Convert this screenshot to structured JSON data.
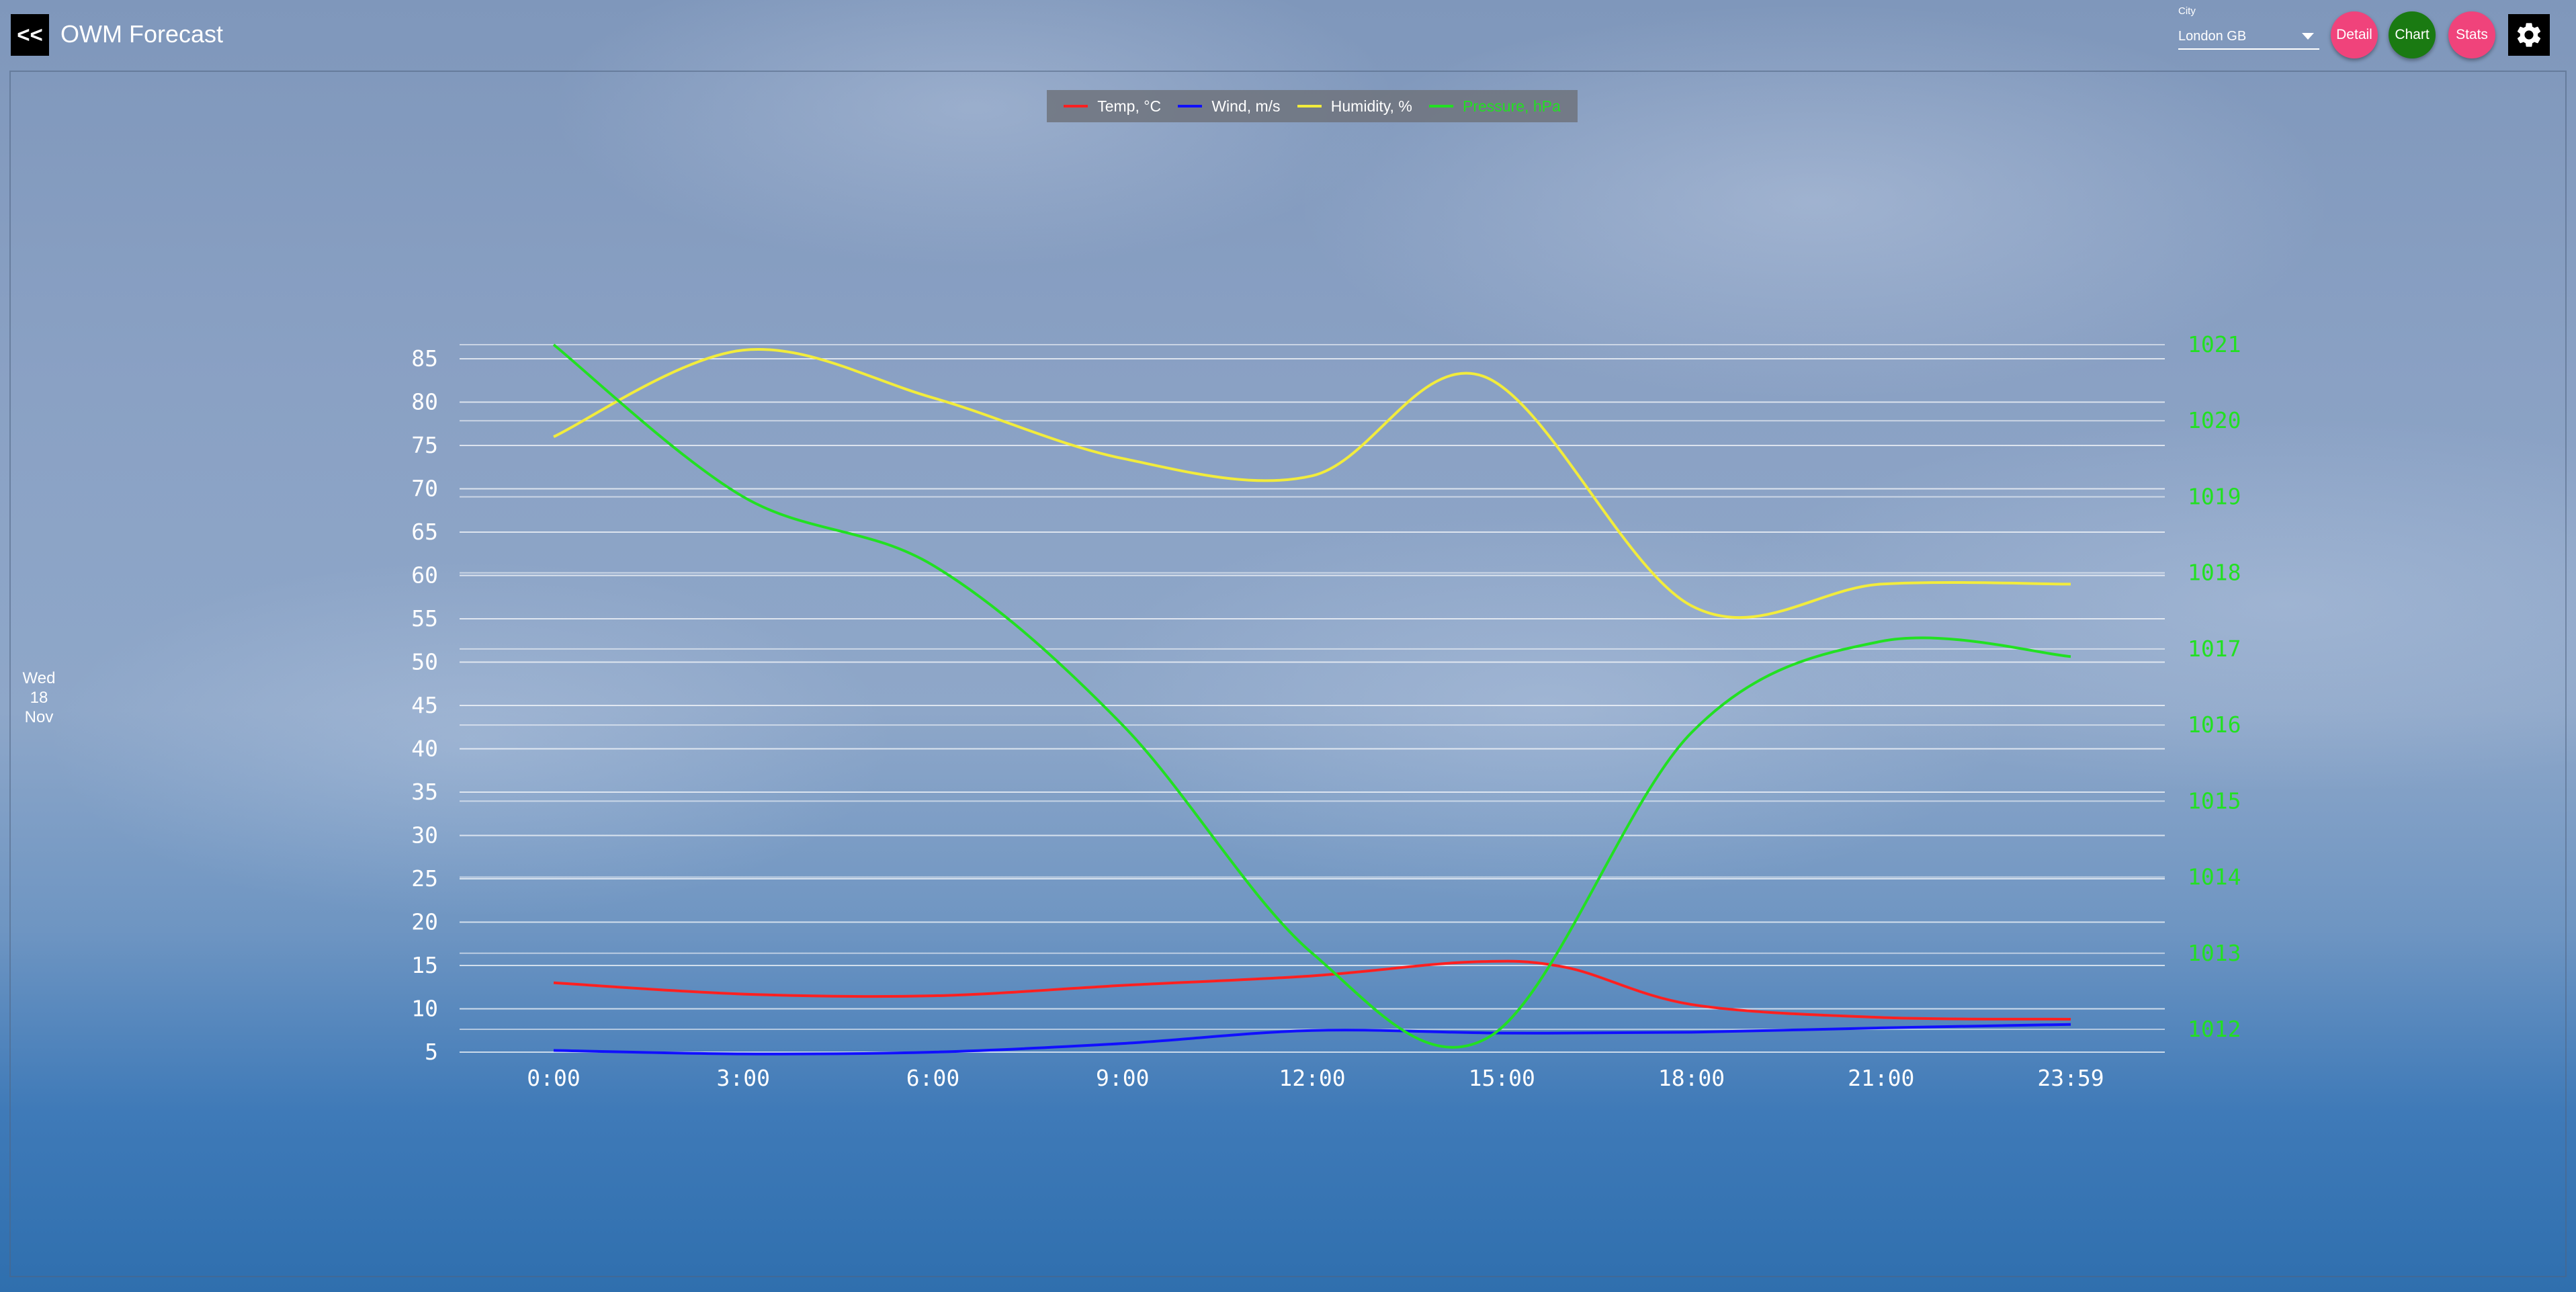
{
  "header": {
    "back_label": "<<",
    "title": "OWM Forecast"
  },
  "city": {
    "label": "City",
    "value": "London GB"
  },
  "buttons": [
    {
      "label": "Detail",
      "color": "#f0437b"
    },
    {
      "label": "Chart",
      "color": "#1a7a12"
    },
    {
      "label": "Stats",
      "color": "#f0437b"
    }
  ],
  "settings_icon": "gear-icon",
  "date": {
    "weekday": "Wed",
    "day": "18",
    "month": "Nov"
  },
  "legend": [
    {
      "label": "Temp, °C",
      "color": "#ff2020",
      "text_color": "#ffffff"
    },
    {
      "label": "Wind, m/s",
      "color": "#1010ff",
      "text_color": "#ffffff"
    },
    {
      "label": "Humidity, %",
      "color": "#f2ec3c",
      "text_color": "#ffffff"
    },
    {
      "label": "Pressure, hPa",
      "color": "#22e022",
      "text_color": "#22e022"
    }
  ],
  "chart_data": {
    "type": "line",
    "x": [
      "0:00",
      "3:00",
      "6:00",
      "9:00",
      "12:00",
      "15:00",
      "18:00",
      "21:00",
      "23:59"
    ],
    "left_axis": {
      "min": 5,
      "max": 85,
      "ticks": [
        5,
        10,
        15,
        20,
        25,
        30,
        35,
        40,
        45,
        50,
        55,
        60,
        65,
        70,
        75,
        80,
        85
      ]
    },
    "right_axis": {
      "min": 1012,
      "max": 1021,
      "ticks": [
        1012,
        1013,
        1014,
        1015,
        1016,
        1017,
        1018,
        1019,
        1020,
        1021
      ],
      "color": "#22e022"
    },
    "grid": true,
    "series": [
      {
        "name": "Temp, °C",
        "axis": "left",
        "color": "#ff2020",
        "x": [
          0,
          3,
          6,
          9,
          12,
          14.5,
          16,
          18,
          21,
          24
        ],
        "values": [
          13.0,
          11.7,
          11.5,
          12.7,
          13.8,
          15.4,
          14.8,
          10.5,
          9.0,
          8.8
        ]
      },
      {
        "name": "Wind, m/s",
        "axis": "left",
        "color": "#1010ff",
        "x": [
          0,
          3,
          6,
          9,
          12,
          15,
          18,
          21,
          24
        ],
        "values": [
          5.2,
          4.8,
          5.0,
          6.0,
          7.5,
          7.2,
          7.3,
          7.8,
          8.2
        ]
      },
      {
        "name": "Humidity, %",
        "axis": "left",
        "color": "#f2ec3c",
        "x": [
          0,
          3,
          6,
          9,
          12,
          14.7,
          18,
          21,
          24
        ],
        "values": [
          76,
          86,
          80.5,
          73.5,
          71.5,
          83,
          56.5,
          59,
          59
        ]
      },
      {
        "name": "Pressure, hPa",
        "axis": "right",
        "color": "#22e022",
        "x": [
          0,
          3,
          6,
          9,
          12,
          14.8,
          18,
          21,
          24
        ],
        "values": [
          1021,
          1019,
          1018.1,
          1016,
          1013,
          1011.9,
          1015.9,
          1017.1,
          1016.9
        ]
      }
    ]
  }
}
